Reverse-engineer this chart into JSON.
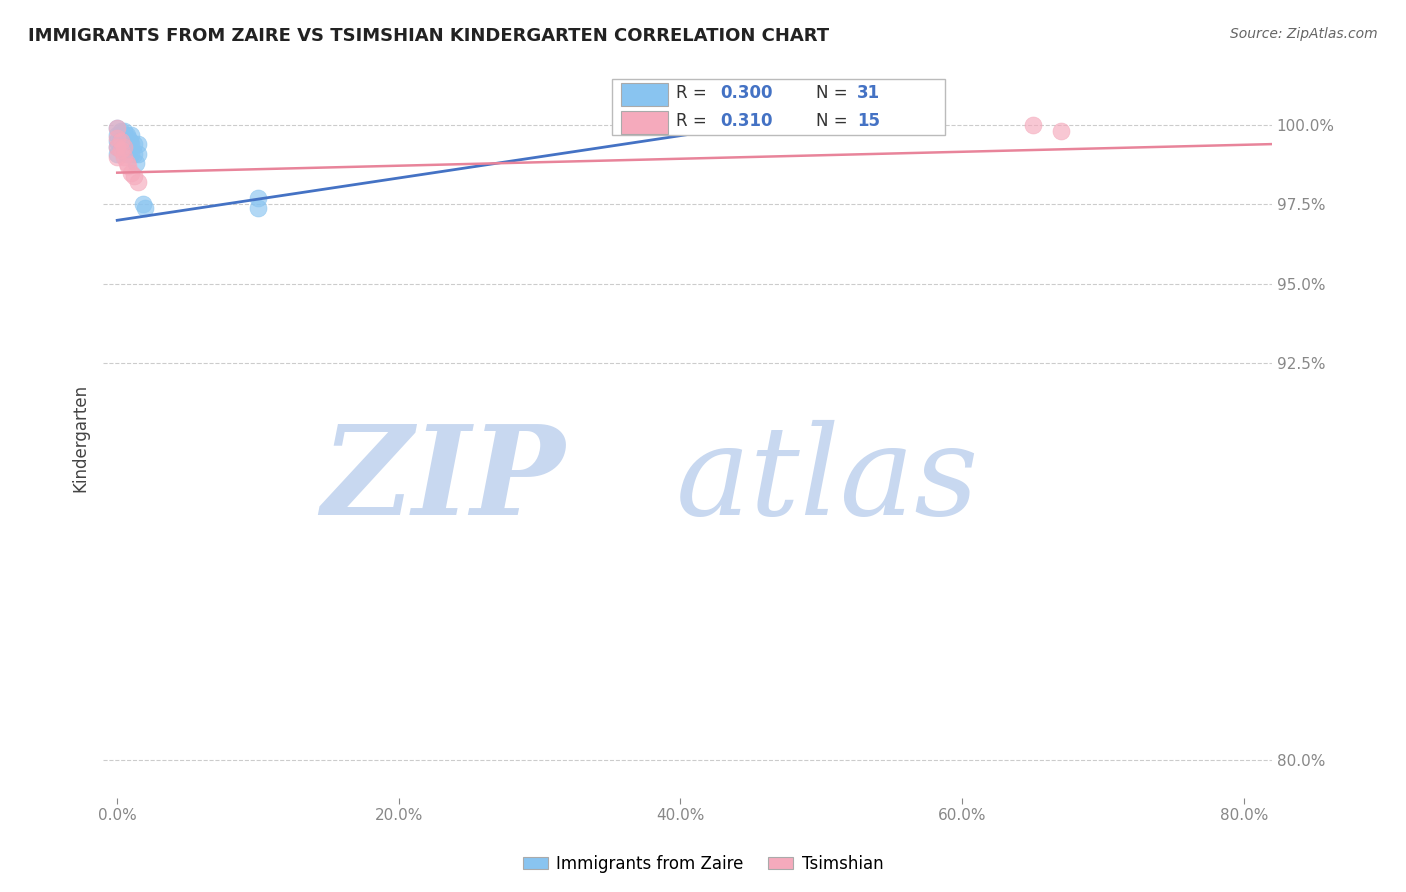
{
  "title": "IMMIGRANTS FROM ZAIRE VS TSIMSHIAN KINDERGARTEN CORRELATION CHART",
  "source": "Source: ZipAtlas.com",
  "ylabel": "Kindergarten",
  "x_tick_labels": [
    "0.0%",
    "20.0%",
    "40.0%",
    "60.0%",
    "80.0%"
  ],
  "x_tick_values": [
    0.0,
    0.2,
    0.4,
    0.6,
    0.8
  ],
  "y_tick_labels": [
    "80.0%",
    "92.5%",
    "95.0%",
    "97.5%",
    "100.0%"
  ],
  "y_tick_values": [
    0.8,
    0.925,
    0.95,
    0.975,
    1.0
  ],
  "xlim": [
    -0.01,
    0.82
  ],
  "ylim": [
    0.788,
    1.015
  ],
  "legend_blue_label": "Immigrants from Zaire",
  "legend_pink_label": "Tsimshian",
  "legend_r_blue": "0.300",
  "legend_n_blue": "31",
  "legend_r_pink": "0.310",
  "legend_n_pink": "15",
  "blue_scatter_x": [
    0.0,
    0.0,
    0.0,
    0.0,
    0.0,
    0.003,
    0.003,
    0.003,
    0.005,
    0.005,
    0.005,
    0.007,
    0.007,
    0.007,
    0.008,
    0.008,
    0.009,
    0.009,
    0.01,
    0.01,
    0.01,
    0.012,
    0.012,
    0.013,
    0.015,
    0.015,
    0.018,
    0.02,
    0.1,
    0.1,
    0.45
  ],
  "blue_scatter_y": [
    0.999,
    0.997,
    0.995,
    0.993,
    0.991,
    0.998,
    0.996,
    0.993,
    0.998,
    0.995,
    0.992,
    0.997,
    0.994,
    0.991,
    0.996,
    0.993,
    0.995,
    0.992,
    0.997,
    0.994,
    0.991,
    0.994,
    0.991,
    0.988,
    0.994,
    0.991,
    0.975,
    0.974,
    0.977,
    0.974,
    1.0
  ],
  "pink_scatter_x": [
    0.0,
    0.0,
    0.0,
    0.0,
    0.003,
    0.003,
    0.005,
    0.005,
    0.007,
    0.008,
    0.01,
    0.012,
    0.015,
    0.65,
    0.67
  ],
  "pink_scatter_y": [
    0.999,
    0.996,
    0.993,
    0.99,
    0.995,
    0.992,
    0.993,
    0.99,
    0.988,
    0.987,
    0.985,
    0.984,
    0.982,
    1.0,
    0.998
  ],
  "blue_line_x": [
    0.0,
    0.45
  ],
  "blue_line_y": [
    0.97,
    1.0
  ],
  "pink_line_x": [
    0.0,
    0.82
  ],
  "pink_line_y": [
    0.985,
    0.994
  ],
  "blue_color": "#89C4F0",
  "pink_color": "#F5AABC",
  "blue_line_color": "#4472C4",
  "pink_line_color": "#E8849A",
  "grid_color": "#CCCCCC",
  "background_color": "#FFFFFF",
  "watermark_zip": "ZIP",
  "watermark_atlas": "atlas",
  "watermark_color_zip": "#C8D8F0",
  "watermark_color_atlas": "#C8D8F0"
}
